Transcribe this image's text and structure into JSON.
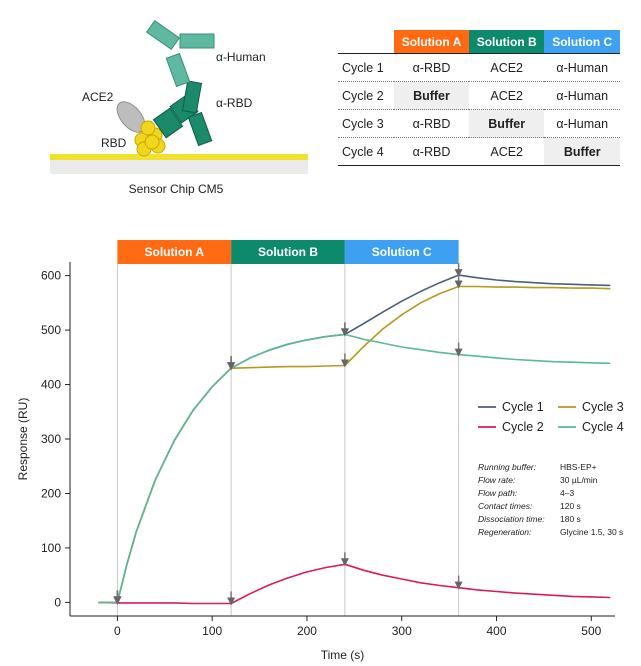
{
  "schematic": {
    "labels": {
      "alpha_human": "α-Human",
      "ace2": "ACE2",
      "alpha_rbd": "α-RBD",
      "rbd": "RBD",
      "sensor_chip": "Sensor Chip CM5"
    },
    "colors": {
      "antibody": "#5fb8a2",
      "antibody_dark": "#1a8a6a",
      "ace2": "#bdbdbd",
      "rbd": "#f0d61c",
      "chip": "#f2e12a"
    }
  },
  "table": {
    "headers": [
      {
        "label": "Solution A",
        "color": "#ff6a13"
      },
      {
        "label": "Solution B",
        "color": "#0d8a6b"
      },
      {
        "label": "Solution C",
        "color": "#3da0f0"
      }
    ],
    "rows": [
      {
        "label": "Cycle 1",
        "cells": [
          "α-RBD",
          "ACE2",
          "α-Human"
        ]
      },
      {
        "label": "Cycle 2",
        "cells": [
          "Buffer",
          "ACE2",
          "α-Human"
        ]
      },
      {
        "label": "Cycle 3",
        "cells": [
          "α-RBD",
          "Buffer",
          "α-Human"
        ]
      },
      {
        "label": "Cycle 4",
        "cells": [
          "α-RBD",
          "ACE2",
          "Buffer"
        ]
      }
    ]
  },
  "chart_data": {
    "type": "line",
    "xlabel": "Time (s)",
    "ylabel": "Response (RU)",
    "xlim": [
      -50,
      525
    ],
    "ylim": [
      -25,
      625
    ],
    "xticks": [
      0,
      100,
      200,
      300,
      400,
      500
    ],
    "yticks": [
      0,
      100,
      200,
      300,
      400,
      500,
      600
    ],
    "phases": [
      {
        "label": "Solution A",
        "start": 0,
        "end": 120,
        "color": "#ff6a13"
      },
      {
        "label": "Solution B",
        "start": 120,
        "end": 240,
        "color": "#0d8a6b"
      },
      {
        "label": "Solution C",
        "start": 240,
        "end": 360,
        "color": "#3da0f0"
      }
    ],
    "injection_markers": [
      0,
      120,
      240,
      360
    ],
    "legend_position": "right",
    "series": [
      {
        "name": "Cycle 1",
        "color": "#4a5f7a",
        "x": [
          -20,
          0,
          10,
          20,
          40,
          60,
          80,
          100,
          120,
          140,
          160,
          180,
          200,
          220,
          240,
          260,
          280,
          300,
          320,
          340,
          360,
          380,
          400,
          420,
          440,
          460,
          480,
          500,
          520
        ],
        "y": [
          0,
          0,
          70,
          130,
          225,
          297,
          353,
          396,
          430,
          449,
          463,
          474,
          482,
          488,
          492,
          512,
          533,
          553,
          571,
          587,
          601,
          596,
          592,
          589,
          587,
          585,
          584,
          583,
          582
        ]
      },
      {
        "name": "Cycle 2",
        "color": "#d81b60",
        "x": [
          -20,
          0,
          20,
          40,
          60,
          80,
          100,
          120,
          140,
          160,
          180,
          200,
          220,
          240,
          260,
          280,
          300,
          320,
          340,
          360,
          380,
          400,
          420,
          440,
          460,
          480,
          500,
          520
        ],
        "y": [
          0,
          -1,
          -1,
          -1,
          -1,
          -2,
          -2,
          -2,
          16,
          32,
          45,
          56,
          64,
          70,
          59,
          50,
          43,
          36,
          31,
          27,
          23,
          20,
          17,
          15,
          13,
          11,
          10,
          9
        ]
      },
      {
        "name": "Cycle 3",
        "color": "#b59a1c",
        "x": [
          -20,
          0,
          10,
          20,
          40,
          60,
          80,
          100,
          120,
          140,
          160,
          180,
          200,
          220,
          240,
          260,
          280,
          300,
          320,
          340,
          360,
          380,
          400,
          420,
          440,
          460,
          480,
          500,
          520
        ],
        "y": [
          0,
          0,
          70,
          130,
          225,
          297,
          353,
          396,
          430,
          431,
          432,
          433,
          433,
          434,
          435,
          470,
          502,
          528,
          550,
          567,
          580,
          580,
          579,
          579,
          578,
          578,
          577,
          577,
          576
        ]
      },
      {
        "name": "Cycle 4",
        "color": "#5bb89a",
        "x": [
          -20,
          0,
          10,
          20,
          40,
          60,
          80,
          100,
          120,
          140,
          160,
          180,
          200,
          220,
          240,
          260,
          280,
          300,
          320,
          340,
          360,
          380,
          400,
          420,
          440,
          460,
          480,
          500,
          520
        ],
        "y": [
          0,
          0,
          70,
          130,
          225,
          297,
          353,
          396,
          430,
          449,
          463,
          474,
          482,
          488,
          492,
          483,
          476,
          469,
          464,
          459,
          455,
          452,
          449,
          446,
          444,
          442,
          441,
          440,
          439
        ]
      }
    ],
    "conditions": [
      {
        "label": "Running buffer:",
        "value": "HBS-EP+"
      },
      {
        "label": "Flow rate:",
        "value": "30 µL/min"
      },
      {
        "label": "Flow path:",
        "value": "4–3"
      },
      {
        "label": "Contact times:",
        "value": "120 s"
      },
      {
        "label": "Dissociation time:",
        "value": "180 s"
      },
      {
        "label": "Regeneration:",
        "value": "Glycine 1.5, 30 s"
      }
    ]
  }
}
